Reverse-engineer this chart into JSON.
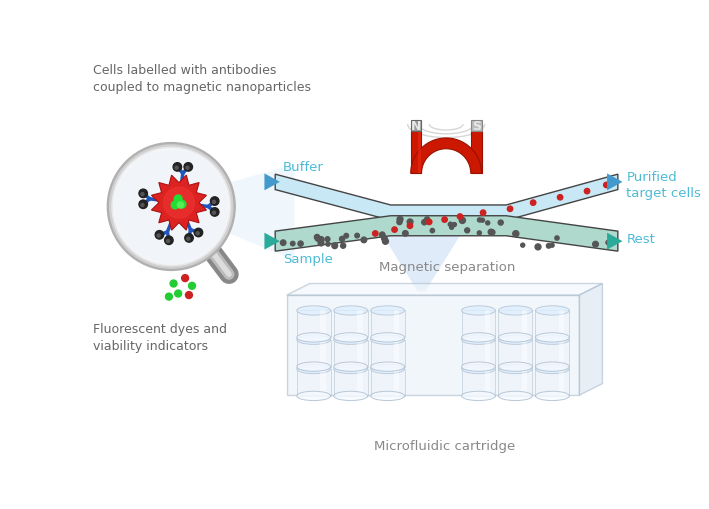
{
  "bg_color": "#ffffff",
  "title_text": "Cells labelled with antibodies\ncoupled to magnetic nanoparticles",
  "title_color": "#666666",
  "title_fontsize": 9.0,
  "label_buffer": "Buffer",
  "label_sample": "Sample",
  "label_rest": "Rest",
  "label_purified": "Purified\ntarget cells",
  "label_mag_sep": "Magnetic separation",
  "label_fluor": "Fluorescent dyes and\nviability indicators",
  "label_cartridge": "Microfluidic cartridge",
  "label_color_cyan": "#4DBBD5",
  "label_color_gray": "#888888",
  "channel_top_fill": "#c8e8f5",
  "channel_bot_fill": "#aed9cc",
  "channel_outline": "#444444",
  "magnet_red": "#cc1800",
  "arrow_top_color": "#4499cc",
  "arrow_bot_color": "#2aaa99",
  "dot_dark": "#555555",
  "dot_red": "#cc2222",
  "virus_red": "#dd2222",
  "antibody_blue": "#2255bb",
  "np_dark": "#333333",
  "beam_color": "#cce6f8",
  "mag_field_color": "#bbbbbb"
}
